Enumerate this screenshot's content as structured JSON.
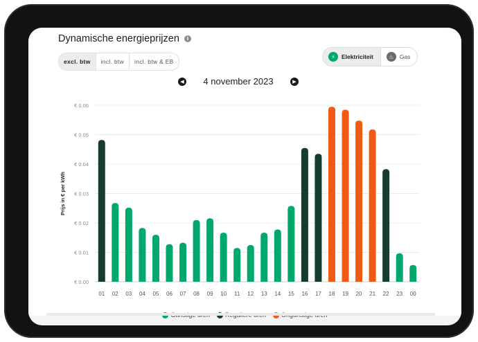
{
  "header": {
    "title": "Dynamische energieprijzen",
    "info_icon": "info-icon"
  },
  "vat_toggle": {
    "options": [
      "excl. btw",
      "incl. btw",
      "incl. btw & EB"
    ],
    "active": "excl. btw"
  },
  "energy_toggle": {
    "options": [
      {
        "label": "Elektriciteit",
        "icon": "lightning-icon",
        "color": "#00a86b"
      },
      {
        "label": "Gas",
        "icon": "flame-icon",
        "color": "#6b6b6b"
      }
    ],
    "active": "Elektriciteit"
  },
  "date_nav": {
    "date": "4 november 2023",
    "prev_icon": "arrow-left-icon",
    "next_icon": "arrow-right-icon"
  },
  "colors": {
    "favorable": "#00a86b",
    "regular": "#143c30",
    "unfavorable": "#f05a14"
  },
  "chart_data": {
    "type": "bar",
    "ylabel": "Prijs in € per kWh",
    "ylim": [
      0,
      0.06
    ],
    "yticks": [
      "€ 0.00",
      "€ 0.01",
      "€ 0.02",
      "€ 0.03",
      "€ 0.04",
      "€ 0.05",
      "€ 0.06"
    ],
    "grid": true,
    "legend_position": "bottom",
    "categories": [
      "01",
      "02",
      "03",
      "04",
      "05",
      "06",
      "07",
      "08",
      "09",
      "10",
      "11",
      "12",
      "13",
      "14",
      "15",
      "16",
      "17",
      "18",
      "19",
      "20",
      "21",
      "22",
      "23",
      "00"
    ],
    "values": [
      0.0482,
      0.0268,
      0.0252,
      0.0183,
      0.016,
      0.0128,
      0.0133,
      0.021,
      0.0216,
      0.0167,
      0.0115,
      0.0125,
      0.0167,
      0.0178,
      0.0258,
      0.0455,
      0.0435,
      0.0595,
      0.0585,
      0.0548,
      0.0518,
      0.0383,
      0.0097,
      0.0057
    ],
    "categories_class": [
      "regular",
      "favorable",
      "favorable",
      "favorable",
      "favorable",
      "favorable",
      "favorable",
      "favorable",
      "favorable",
      "favorable",
      "favorable",
      "favorable",
      "favorable",
      "favorable",
      "favorable",
      "regular",
      "regular",
      "unfavorable",
      "unfavorable",
      "unfavorable",
      "unfavorable",
      "regular",
      "favorable",
      "favorable"
    ],
    "legend": [
      {
        "name": "Gunstige uren",
        "key": "favorable"
      },
      {
        "name": "Reguliere uren",
        "key": "regular"
      },
      {
        "name": "Ongunstige uren",
        "key": "unfavorable"
      }
    ]
  }
}
